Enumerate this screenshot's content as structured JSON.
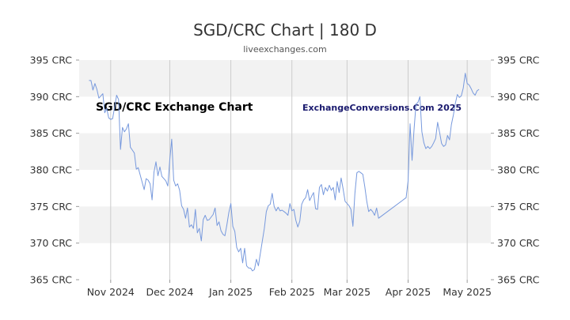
{
  "header": {
    "title": "SGD/CRC Chart | 180 D",
    "source": "liveexchanges.com"
  },
  "watermark": {
    "left": "SGD/CRC Exchange Chart",
    "right": "ExchangeConversions.Com 2025"
  },
  "colors": {
    "line": "#7799dd",
    "band": "#f2f2f2",
    "grid": "#cccccc",
    "axis": "#999999"
  },
  "chart_data": {
    "type": "line",
    "title": "SGD/CRC Chart | 180 D",
    "xlabel": "",
    "ylabel": "",
    "ylim": [
      365,
      395
    ],
    "y_ticks": [
      {
        "value": 395,
        "label": "395 CRC"
      },
      {
        "value": 390,
        "label": "390 CRC"
      },
      {
        "value": 385,
        "label": "385 CRC"
      },
      {
        "value": 380,
        "label": "380 CRC"
      },
      {
        "value": 375,
        "label": "375 CRC"
      },
      {
        "value": 370,
        "label": "370 CRC"
      },
      {
        "value": 365,
        "label": "365 CRC"
      }
    ],
    "x_ticks": [
      {
        "date": "2024-11-01",
        "label": "Nov 2024"
      },
      {
        "date": "2024-12-01",
        "label": "Dec 2024"
      },
      {
        "date": "2025-01-01",
        "label": "Jan 2025"
      },
      {
        "date": "2025-02-01",
        "label": "Feb 2025"
      },
      {
        "date": "2025-03-01",
        "label": "Mar 2025"
      },
      {
        "date": "2025-04-01",
        "label": "Apr 2025"
      },
      {
        "date": "2025-05-01",
        "label": "May 2025"
      }
    ],
    "xlim": [
      "2024-10-16",
      "2025-05-13"
    ],
    "grid": true,
    "series": [
      {
        "values": [
          [
            "2024-10-21",
            392.2
          ],
          [
            "2024-10-22",
            392.2
          ],
          [
            "2024-10-23",
            390.9
          ],
          [
            "2024-10-24",
            391.8
          ],
          [
            "2024-10-25",
            391.0
          ],
          [
            "2024-10-26",
            389.8
          ],
          [
            "2024-10-28",
            390.4
          ],
          [
            "2024-10-29",
            387.8
          ],
          [
            "2024-10-30",
            388.4
          ],
          [
            "2024-10-31",
            387.1
          ],
          [
            "2024-11-01",
            386.9
          ],
          [
            "2024-11-02",
            387.0
          ],
          [
            "2024-11-04",
            390.2
          ],
          [
            "2024-11-05",
            389.6
          ],
          [
            "2024-11-06",
            382.8
          ],
          [
            "2024-11-07",
            385.8
          ],
          [
            "2024-11-08",
            385.2
          ],
          [
            "2024-11-09",
            385.6
          ],
          [
            "2024-11-10",
            386.3
          ],
          [
            "2024-11-11",
            383.1
          ],
          [
            "2024-11-12",
            382.7
          ],
          [
            "2024-11-13",
            382.3
          ],
          [
            "2024-11-14",
            380.1
          ],
          [
            "2024-11-15",
            380.3
          ],
          [
            "2024-11-16",
            379.3
          ],
          [
            "2024-11-18",
            377.3
          ],
          [
            "2024-11-19",
            378.8
          ],
          [
            "2024-11-20",
            378.6
          ],
          [
            "2024-11-21",
            378.1
          ],
          [
            "2024-11-22",
            375.9
          ],
          [
            "2024-11-23",
            379.7
          ],
          [
            "2024-11-24",
            381.1
          ],
          [
            "2024-11-25",
            379.2
          ],
          [
            "2024-11-26",
            380.4
          ],
          [
            "2024-11-27",
            379.1
          ],
          [
            "2024-11-28",
            378.8
          ],
          [
            "2024-11-29",
            378.5
          ],
          [
            "2024-11-30",
            377.8
          ],
          [
            "2024-12-01",
            381.3
          ],
          [
            "2024-12-02",
            384.2
          ],
          [
            "2024-12-03",
            378.6
          ],
          [
            "2024-12-04",
            377.8
          ],
          [
            "2024-12-05",
            378.1
          ],
          [
            "2024-12-06",
            377.2
          ],
          [
            "2024-12-07",
            375.1
          ],
          [
            "2024-12-08",
            374.6
          ],
          [
            "2024-12-09",
            373.4
          ],
          [
            "2024-12-10",
            374.8
          ],
          [
            "2024-12-11",
            372.2
          ],
          [
            "2024-12-12",
            372.5
          ],
          [
            "2024-12-13",
            372.0
          ],
          [
            "2024-12-14",
            374.6
          ],
          [
            "2024-12-15",
            371.4
          ],
          [
            "2024-12-16",
            372.0
          ],
          [
            "2024-12-17",
            370.3
          ],
          [
            "2024-12-18",
            373.2
          ],
          [
            "2024-12-19",
            373.8
          ],
          [
            "2024-12-20",
            373.1
          ],
          [
            "2024-12-21",
            373.2
          ],
          [
            "2024-12-23",
            373.9
          ],
          [
            "2024-12-24",
            374.8
          ],
          [
            "2024-12-25",
            372.4
          ],
          [
            "2024-12-26",
            372.9
          ],
          [
            "2024-12-27",
            371.7
          ],
          [
            "2024-12-28",
            371.2
          ],
          [
            "2024-12-29",
            371.0
          ],
          [
            "2024-12-30",
            372.5
          ],
          [
            "2024-12-31",
            374.2
          ],
          [
            "2025-01-01",
            375.4
          ],
          [
            "2025-01-02",
            372.3
          ],
          [
            "2025-01-03",
            371.6
          ],
          [
            "2025-01-04",
            369.4
          ],
          [
            "2025-01-05",
            368.8
          ],
          [
            "2025-01-06",
            369.3
          ],
          [
            "2025-01-07",
            367.3
          ],
          [
            "2025-01-08",
            369.3
          ],
          [
            "2025-01-09",
            366.9
          ],
          [
            "2025-01-10",
            366.6
          ],
          [
            "2025-01-11",
            366.6
          ],
          [
            "2025-01-12",
            366.2
          ],
          [
            "2025-01-13",
            366.4
          ],
          [
            "2025-01-14",
            367.8
          ],
          [
            "2025-01-15",
            366.9
          ],
          [
            "2025-01-16",
            368.6
          ],
          [
            "2025-01-18",
            372.0
          ],
          [
            "2025-01-19",
            374.3
          ],
          [
            "2025-01-20",
            375.1
          ],
          [
            "2025-01-21",
            375.3
          ],
          [
            "2025-01-22",
            376.8
          ],
          [
            "2025-01-23",
            375.0
          ],
          [
            "2025-01-24",
            374.4
          ],
          [
            "2025-01-25",
            374.9
          ],
          [
            "2025-01-26",
            374.4
          ],
          [
            "2025-01-27",
            374.5
          ],
          [
            "2025-01-28",
            374.3
          ],
          [
            "2025-01-29",
            374.1
          ],
          [
            "2025-01-30",
            373.8
          ],
          [
            "2025-01-31",
            375.4
          ],
          [
            "2025-02-01",
            374.4
          ],
          [
            "2025-02-02",
            374.6
          ],
          [
            "2025-02-03",
            373.1
          ],
          [
            "2025-02-04",
            372.2
          ],
          [
            "2025-02-05",
            373.0
          ],
          [
            "2025-02-06",
            375.3
          ],
          [
            "2025-02-07",
            375.9
          ],
          [
            "2025-02-08",
            376.2
          ],
          [
            "2025-02-09",
            377.3
          ],
          [
            "2025-02-10",
            375.8
          ],
          [
            "2025-02-11",
            376.4
          ],
          [
            "2025-02-12",
            376.9
          ],
          [
            "2025-02-13",
            374.7
          ],
          [
            "2025-02-14",
            374.6
          ],
          [
            "2025-02-15",
            377.6
          ],
          [
            "2025-02-16",
            378.0
          ],
          [
            "2025-02-17",
            376.6
          ],
          [
            "2025-02-18",
            377.6
          ],
          [
            "2025-02-19",
            377.1
          ],
          [
            "2025-02-20",
            377.9
          ],
          [
            "2025-02-21",
            377.2
          ],
          [
            "2025-02-22",
            377.6
          ],
          [
            "2025-02-23",
            375.9
          ],
          [
            "2025-02-24",
            378.4
          ],
          [
            "2025-02-25",
            376.9
          ],
          [
            "2025-02-26",
            378.9
          ],
          [
            "2025-02-27",
            377.4
          ],
          [
            "2025-02-28",
            375.7
          ],
          [
            "2025-03-01",
            375.4
          ],
          [
            "2025-03-02",
            375.1
          ],
          [
            "2025-03-03",
            374.6
          ],
          [
            "2025-03-04",
            372.3
          ],
          [
            "2025-03-05",
            376.8
          ],
          [
            "2025-03-06",
            379.6
          ],
          [
            "2025-03-07",
            379.8
          ],
          [
            "2025-03-08",
            379.6
          ],
          [
            "2025-03-09",
            379.4
          ],
          [
            "2025-03-10",
            377.7
          ],
          [
            "2025-03-11",
            375.7
          ],
          [
            "2025-03-12",
            374.3
          ],
          [
            "2025-03-13",
            374.6
          ],
          [
            "2025-03-14",
            374.3
          ],
          [
            "2025-03-15",
            373.8
          ],
          [
            "2025-03-16",
            374.8
          ],
          [
            "2025-03-17",
            373.4
          ],
          [
            "2025-03-31",
            376.2
          ],
          [
            "2025-04-01",
            378.5
          ],
          [
            "2025-04-02",
            386.3
          ],
          [
            "2025-04-03",
            381.3
          ],
          [
            "2025-04-04",
            385.5
          ],
          [
            "2025-04-05",
            389.0
          ],
          [
            "2025-04-06",
            389.2
          ],
          [
            "2025-04-07",
            390.0
          ],
          [
            "2025-04-08",
            385.2
          ],
          [
            "2025-04-09",
            383.7
          ],
          [
            "2025-04-10",
            382.9
          ],
          [
            "2025-04-11",
            383.2
          ],
          [
            "2025-04-12",
            382.9
          ],
          [
            "2025-04-13",
            383.2
          ],
          [
            "2025-04-14",
            383.7
          ],
          [
            "2025-04-15",
            384.3
          ],
          [
            "2025-04-16",
            386.5
          ],
          [
            "2025-04-17",
            385.1
          ],
          [
            "2025-04-18",
            383.6
          ],
          [
            "2025-04-19",
            383.2
          ],
          [
            "2025-04-20",
            383.4
          ],
          [
            "2025-04-21",
            384.7
          ],
          [
            "2025-04-22",
            384.1
          ],
          [
            "2025-04-23",
            386.2
          ],
          [
            "2025-04-24",
            387.5
          ],
          [
            "2025-04-25",
            389.1
          ],
          [
            "2025-04-26",
            390.3
          ],
          [
            "2025-04-27",
            389.9
          ],
          [
            "2025-04-28",
            390.1
          ],
          [
            "2025-04-29",
            391.2
          ],
          [
            "2025-04-30",
            393.2
          ],
          [
            "2025-05-01",
            391.8
          ],
          [
            "2025-05-02",
            391.6
          ],
          [
            "2025-05-03",
            391.1
          ],
          [
            "2025-05-04",
            390.5
          ],
          [
            "2025-05-05",
            390.2
          ],
          [
            "2025-05-06",
            390.8
          ],
          [
            "2025-05-07",
            391.0
          ]
        ]
      }
    ]
  }
}
